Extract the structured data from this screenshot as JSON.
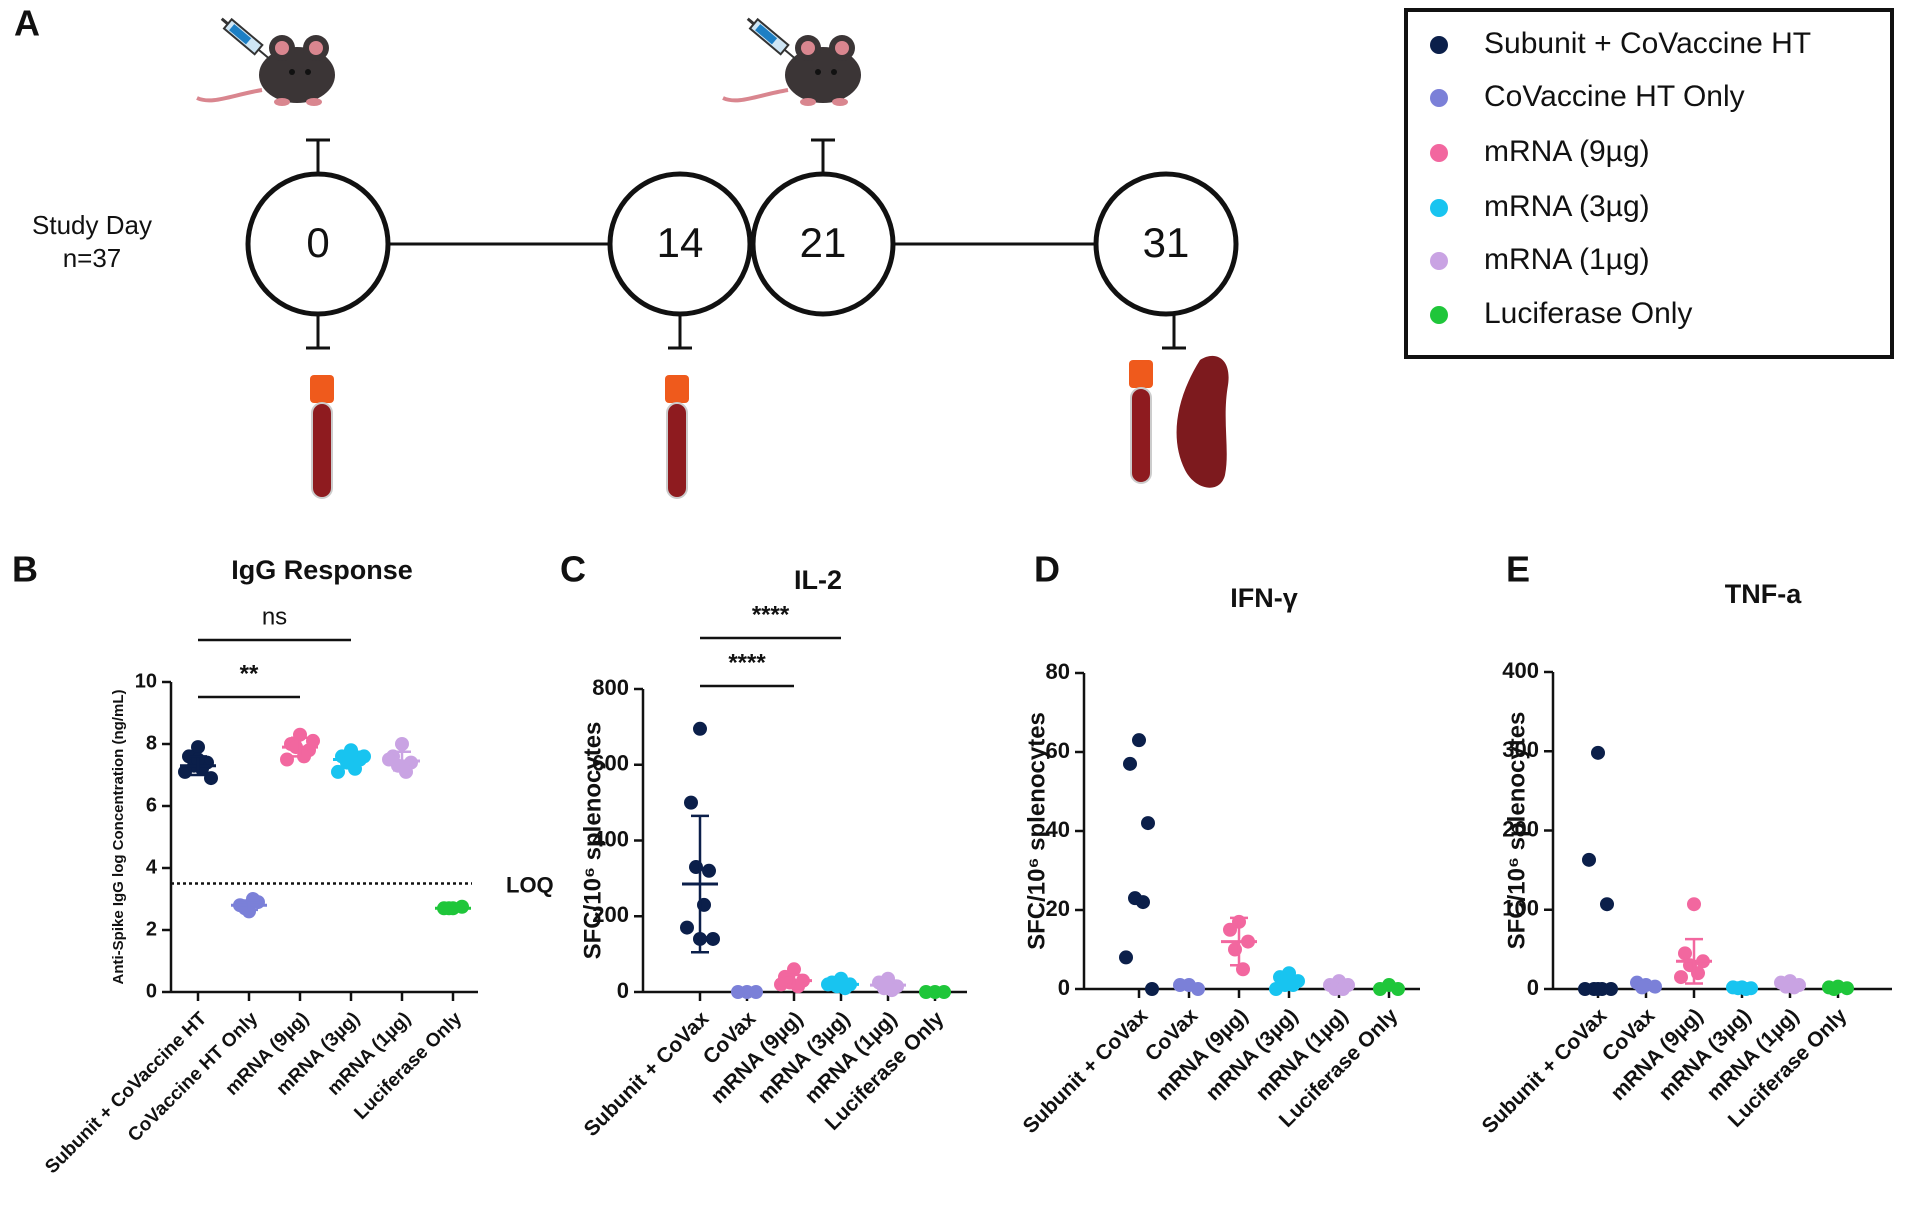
{
  "timeline": {
    "panel": "A",
    "label": "Study Day",
    "n": "n=37",
    "days": [
      0,
      14,
      21,
      31
    ]
  },
  "legend": {
    "entries": [
      {
        "name": "Subunit + CoVaccine HT",
        "color": "#0b1f4a"
      },
      {
        "name": "CoVaccine HT Only",
        "color": "#7b80d8"
      },
      {
        "name": "mRNA (9µg)",
        "color": "#f2679f"
      },
      {
        "name": "mRNA (3µg)",
        "color": "#18c4f0"
      },
      {
        "name": "mRNA (1µg)",
        "color": "#c9a3e3"
      },
      {
        "name": "Luciferase Only",
        "color": "#1fc63a"
      }
    ]
  },
  "chart_data": [
    {
      "type": "dotplot",
      "panel": "B",
      "title": "IgG Response",
      "y_label": "Anti-Spike IgG log Concentration (ng/mL)",
      "categories": [
        "Subunit + CoVaccine HT",
        "CoVaccine HT Only",
        "mRNA (9µg)",
        "mRNA (3µg)",
        "mRNA (1µg)",
        "Luciferase Only"
      ],
      "colors": [
        "#0b1f4a",
        "#7b80d8",
        "#f2679f",
        "#18c4f0",
        "#c9a3e3",
        "#1fc63a"
      ],
      "points": [
        [
          7.9,
          7.6,
          7.4,
          7.3,
          7.2,
          7.1,
          6.9,
          7.5
        ],
        [
          2.6,
          2.8,
          2.9,
          2.7,
          3.0
        ],
        [
          8.3,
          8.0,
          7.8,
          7.9,
          7.6,
          7.5,
          8.1
        ],
        [
          7.8,
          7.6,
          7.5,
          7.4,
          7.2,
          7.1,
          7.6,
          7.7
        ],
        [
          8.0,
          7.6,
          7.4,
          7.3,
          7.1,
          7.5
        ],
        [
          2.7,
          2.7,
          2.75,
          2.7
        ]
      ],
      "means": [
        7.3,
        2.8,
        7.9,
        7.5,
        7.45,
        2.7
      ],
      "sd": [
        0.3,
        0.15,
        0.3,
        0.25,
        0.3,
        0.02
      ],
      "ylim": [
        0,
        10
      ],
      "yticks": [
        0,
        2,
        4,
        6,
        8,
        10
      ],
      "hline": {
        "value": 3.5,
        "label": "LOQ"
      },
      "brackets": [
        {
          "label": "**",
          "from": "Subunit + CoVaccine HT",
          "to": "mRNA (9µg)"
        },
        {
          "label": "ns",
          "from": "Subunit + CoVaccine HT",
          "to": "mRNA (3µg)"
        }
      ]
    },
    {
      "type": "dotplot",
      "panel": "C",
      "title": "IL-2",
      "y_label": "SFC/10⁶ splenocytes",
      "categories": [
        "Subunit + CoVax",
        "CoVax",
        "mRNA (9µg)",
        "mRNA (3µg)",
        "mRNA (1µg)",
        "Luciferase Only"
      ],
      "colors": [
        "#0b1f4a",
        "#7b80d8",
        "#f2679f",
        "#18c4f0",
        "#c9a3e3",
        "#1fc63a"
      ],
      "points": [
        [
          695,
          500,
          320,
          330,
          230,
          170,
          140,
          140
        ],
        [
          0,
          0,
          0
        ],
        [
          60,
          40,
          30,
          25,
          15,
          20
        ],
        [
          35,
          25,
          20,
          15,
          10,
          20
        ],
        [
          35,
          25,
          15,
          10,
          5
        ],
        [
          0,
          0,
          0
        ]
      ],
      "means": [
        285,
        null,
        30,
        20,
        18,
        null
      ],
      "sd": [
        180,
        null,
        15,
        8,
        12,
        null
      ],
      "ylim": [
        0,
        800
      ],
      "yticks": [
        0,
        200,
        400,
        600,
        800
      ],
      "brackets": [
        {
          "label": "****",
          "from": "Subunit + CoVax",
          "to": "mRNA (9µg)"
        },
        {
          "label": "****",
          "from": "Subunit + CoVax",
          "to": "mRNA (3µg)"
        }
      ]
    },
    {
      "type": "dotplot",
      "panel": "D",
      "title": "IFN-γ",
      "y_label": "SFC/10⁶ splenocytes",
      "categories": [
        "Subunit + CoVax",
        "CoVax",
        "mRNA (9µg)",
        "mRNA (3µg)",
        "mRNA (1µg)",
        "Luciferase Only"
      ],
      "colors": [
        "#0b1f4a",
        "#7b80d8",
        "#f2679f",
        "#18c4f0",
        "#c9a3e3",
        "#1fc63a"
      ],
      "points": [
        [
          63,
          57,
          42,
          23,
          22,
          8,
          0
        ],
        [
          1,
          1,
          0
        ],
        [
          17,
          15,
          12,
          10,
          5
        ],
        [
          4,
          3,
          2,
          1,
          1,
          0
        ],
        [
          2,
          1,
          1,
          0,
          0
        ],
        [
          1,
          0,
          0
        ]
      ],
      "means": [
        null,
        null,
        12,
        null,
        null,
        null
      ],
      "sd": [
        null,
        null,
        6,
        null,
        null,
        null
      ],
      "ylim": [
        0,
        80
      ],
      "yticks": [
        0,
        20,
        40,
        60,
        80
      ]
    },
    {
      "type": "dotplot",
      "panel": "E",
      "title": "TNF-a",
      "y_label": "SFC/10⁶ splenocytes",
      "categories": [
        "Subunit + CoVax",
        "CoVax",
        "mRNA (9µg)",
        "mRNA (3µg)",
        "mRNA (1µg)",
        "Luciferase Only"
      ],
      "colors": [
        "#0b1f4a",
        "#7b80d8",
        "#f2679f",
        "#18c4f0",
        "#c9a3e3",
        "#1fc63a"
      ],
      "points": [
        [
          298,
          163,
          107,
          0,
          0,
          0,
          0,
          0
        ],
        [
          5,
          8,
          3,
          2
        ],
        [
          107,
          45,
          35,
          30,
          20,
          15
        ],
        [
          2,
          2,
          1,
          1,
          0
        ],
        [
          10,
          8,
          5,
          3,
          2
        ],
        [
          3,
          2,
          1,
          0
        ]
      ],
      "means": [
        null,
        null,
        35,
        null,
        null,
        null
      ],
      "sd": [
        null,
        null,
        28,
        null,
        null,
        null
      ],
      "ylim": [
        0,
        400
      ],
      "yticks": [
        0,
        100,
        200,
        300,
        400
      ]
    }
  ]
}
